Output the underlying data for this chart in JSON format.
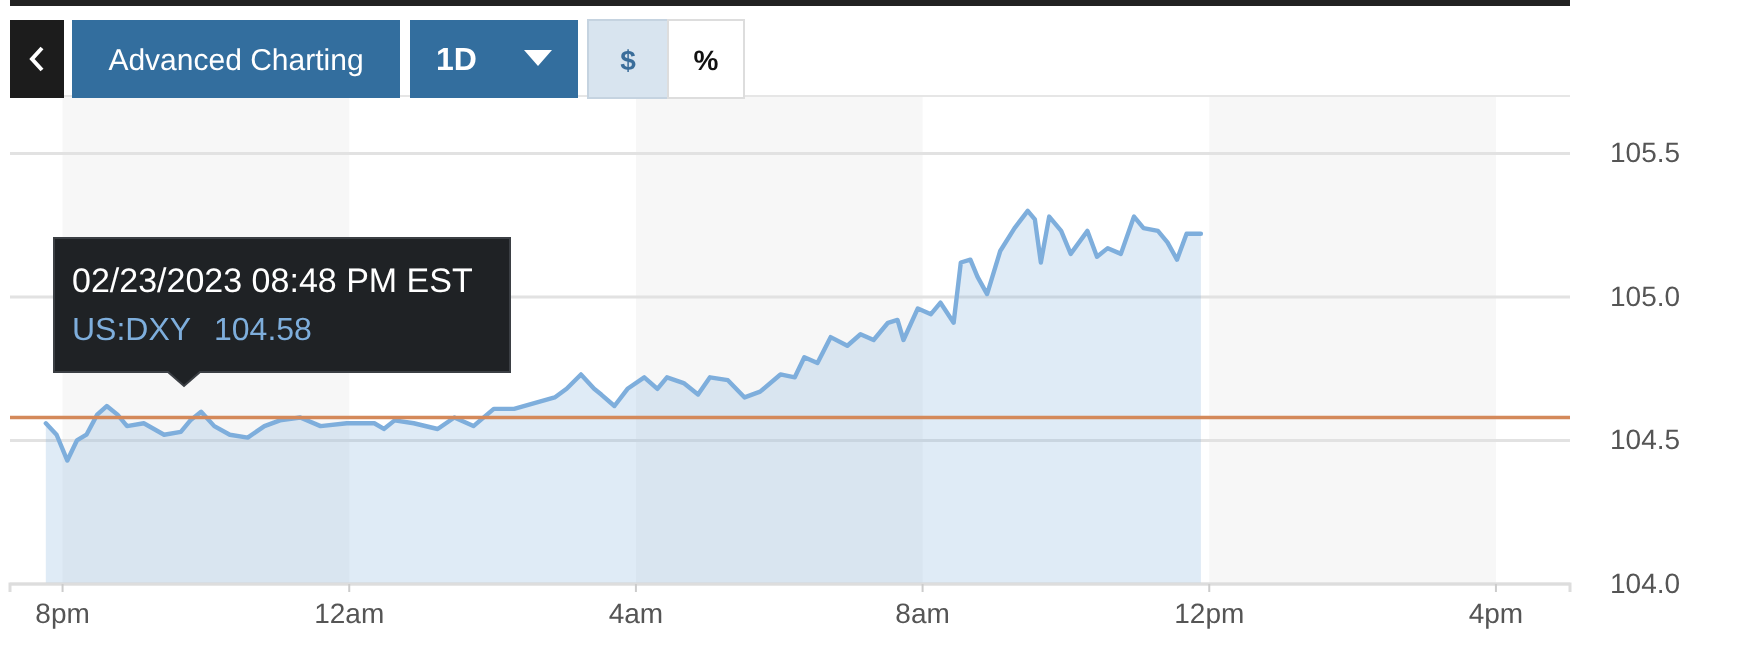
{
  "chart_data": {
    "type": "area",
    "x": [
      "2023-02-23T19:46",
      "2023-02-23T19:55",
      "2023-02-23T20:04",
      "2023-02-23T20:12",
      "2023-02-23T20:20",
      "2023-02-23T20:29",
      "2023-02-23T20:37",
      "2023-02-23T20:46",
      "2023-02-23T20:54",
      "2023-02-23T21:08",
      "2023-02-23T21:25",
      "2023-02-23T21:39",
      "2023-02-23T21:47",
      "2023-02-23T21:56",
      "2023-02-23T22:07",
      "2023-02-23T22:20",
      "2023-02-23T22:35",
      "2023-02-23T22:49",
      "2023-02-23T23:02",
      "2023-02-23T23:19",
      "2023-02-23T23:36",
      "2023-02-23T23:58",
      "2023-02-24T00:21",
      "2023-02-24T00:29",
      "2023-02-24T00:38",
      "2023-02-24T00:54",
      "2023-02-24T01:14",
      "2023-02-24T01:28",
      "2023-02-24T01:44",
      "2023-02-24T02:01",
      "2023-02-24T02:18",
      "2023-02-24T02:35",
      "2023-02-24T02:52",
      "2023-02-24T03:02",
      "2023-02-24T03:14",
      "2023-02-24T03:25",
      "2023-02-24T03:31",
      "2023-02-24T03:42",
      "2023-02-24T03:53",
      "2023-02-24T04:07",
      "2023-02-24T04:18",
      "2023-02-24T04:26",
      "2023-02-24T04:40",
      "2023-02-24T04:52",
      "2023-02-24T05:02",
      "2023-02-24T05:17",
      "2023-02-24T05:31",
      "2023-02-24T05:44",
      "2023-02-24T06:01",
      "2023-02-24T06:13",
      "2023-02-24T06:21",
      "2023-02-24T06:32",
      "2023-02-24T06:43",
      "2023-02-24T06:57",
      "2023-02-24T07:08",
      "2023-02-24T07:19",
      "2023-02-24T07:31",
      "2023-02-24T07:39",
      "2023-02-24T07:44",
      "2023-02-24T07:56",
      "2023-02-24T08:07",
      "2023-02-24T08:15",
      "2023-02-24T08:26",
      "2023-02-24T08:32",
      "2023-02-24T08:40",
      "2023-02-24T08:46",
      "2023-02-24T08:54",
      "2023-02-24T09:05",
      "2023-02-24T09:17",
      "2023-02-24T09:28",
      "2023-02-24T09:34",
      "2023-02-24T09:39",
      "2023-02-24T09:46",
      "2023-02-24T09:56",
      "2023-02-24T10:04",
      "2023-02-24T10:18",
      "2023-02-24T10:26",
      "2023-02-24T10:35",
      "2023-02-24T10:46",
      "2023-02-24T10:57",
      "2023-02-24T11:05",
      "2023-02-24T11:17",
      "2023-02-24T11:25",
      "2023-02-24T11:33",
      "2023-02-24T11:41",
      "2023-02-24T11:53"
    ],
    "series": [
      {
        "color": "#7eaedc",
        "values": [
          104.56,
          104.52,
          104.43,
          104.5,
          104.52,
          104.59,
          104.62,
          104.59,
          104.55,
          104.56,
          104.52,
          104.53,
          104.57,
          104.6,
          104.55,
          104.52,
          104.51,
          104.55,
          104.57,
          104.58,
          104.55,
          104.56,
          104.56,
          104.54,
          104.57,
          104.56,
          104.54,
          104.58,
          104.55,
          104.61,
          104.61,
          104.63,
          104.65,
          104.68,
          104.73,
          104.68,
          104.66,
          104.62,
          104.68,
          104.72,
          104.68,
          104.72,
          104.7,
          104.66,
          104.72,
          104.71,
          104.65,
          104.67,
          104.73,
          104.72,
          104.79,
          104.77,
          104.86,
          104.83,
          104.87,
          104.85,
          104.91,
          104.92,
          104.85,
          104.96,
          104.94,
          104.98,
          104.91,
          105.12,
          105.13,
          105.07,
          105.01,
          105.16,
          105.24,
          105.3,
          105.27,
          105.12,
          105.28,
          105.23,
          105.15,
          105.23,
          105.14,
          105.17,
          105.15,
          105.28,
          105.24,
          105.23,
          105.19,
          105.13,
          105.22,
          105.22
        ]
      }
    ],
    "xlim": [
      "2023-02-23T19:16",
      "2023-02-24T17:02"
    ],
    "xticks": [
      {
        "value": "2023-02-23T20:00",
        "label": "8pm"
      },
      {
        "value": "2023-02-24T00:00",
        "label": "12am"
      },
      {
        "value": "2023-02-24T04:00",
        "label": "4am"
      },
      {
        "value": "2023-02-24T08:00",
        "label": "8am"
      },
      {
        "value": "2023-02-24T12:00",
        "label": "12pm"
      },
      {
        "value": "2023-02-24T16:00",
        "label": "4pm"
      }
    ],
    "ylim": [
      104.0,
      105.7
    ],
    "yticks": [
      {
        "value": 104,
        "label": "104.0"
      },
      {
        "value": 104.5,
        "label": "104.5"
      },
      {
        "value": 105,
        "label": "105.0"
      },
      {
        "value": 105.5,
        "label": "105.5"
      }
    ],
    "grid": "y",
    "ref_lines": [
      {
        "axis": "y",
        "value": 104.58,
        "color": "#d4895a"
      }
    ],
    "bands": [
      {
        "axis": "x",
        "from": "2023-02-23T20:00",
        "to": "2023-02-24T00:00",
        "color": "#f7f7f7"
      },
      {
        "axis": "x",
        "from": "2023-02-24T04:00",
        "to": "2023-02-24T08:00",
        "color": "#f7f7f7"
      },
      {
        "axis": "x",
        "from": "2023-02-24T12:00",
        "to": "2023-02-24T16:00",
        "color": "#f7f7f7"
      }
    ],
    "annotations": [
      "Advanced Charting",
      "1D",
      "$",
      "%",
      "02/23/2023 08:48 PM EST",
      "US:DXY",
      "104.58"
    ]
  }
}
